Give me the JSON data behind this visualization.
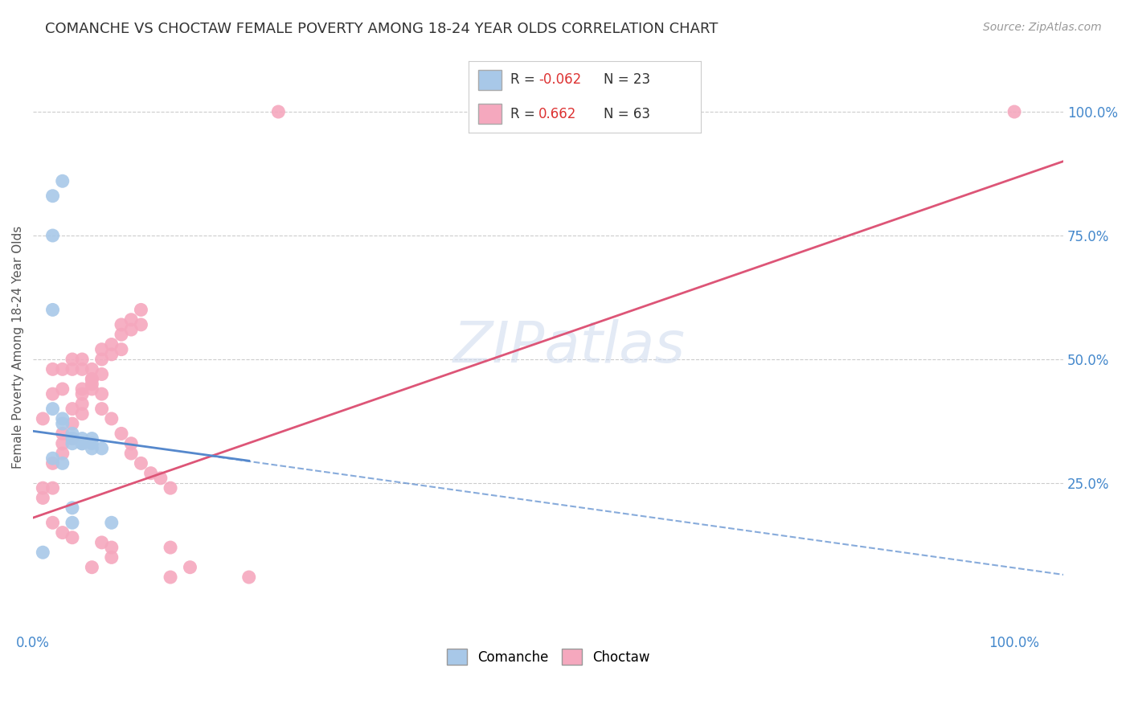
{
  "title": "COMANCHE VS CHOCTAW FEMALE POVERTY AMONG 18-24 YEAR OLDS CORRELATION CHART",
  "source": "Source: ZipAtlas.com",
  "ylabel": "Female Poverty Among 18-24 Year Olds",
  "y_tick_labels_right": [
    "25.0%",
    "50.0%",
    "75.0%",
    "100.0%"
  ],
  "watermark": "ZIPatlas",
  "comanche_color": "#a8c8e8",
  "choctaw_color": "#f5a8be",
  "comanche_line_color": "#5588cc",
  "choctaw_line_color": "#dd5577",
  "comanche_scatter": [
    [
      0.02,
      0.83
    ],
    [
      0.03,
      0.86
    ],
    [
      0.02,
      0.75
    ],
    [
      0.02,
      0.6
    ],
    [
      0.02,
      0.4
    ],
    [
      0.03,
      0.38
    ],
    [
      0.03,
      0.37
    ],
    [
      0.04,
      0.35
    ],
    [
      0.04,
      0.34
    ],
    [
      0.04,
      0.33
    ],
    [
      0.05,
      0.33
    ],
    [
      0.05,
      0.34
    ],
    [
      0.05,
      0.33
    ],
    [
      0.06,
      0.34
    ],
    [
      0.06,
      0.33
    ],
    [
      0.06,
      0.32
    ],
    [
      0.07,
      0.32
    ],
    [
      0.02,
      0.3
    ],
    [
      0.03,
      0.29
    ],
    [
      0.04,
      0.2
    ],
    [
      0.04,
      0.17
    ],
    [
      0.08,
      0.17
    ],
    [
      0.01,
      0.11
    ]
  ],
  "choctaw_scatter": [
    [
      0.01,
      0.24
    ],
    [
      0.02,
      0.24
    ],
    [
      0.01,
      0.22
    ],
    [
      0.02,
      0.29
    ],
    [
      0.03,
      0.31
    ],
    [
      0.03,
      0.33
    ],
    [
      0.03,
      0.35
    ],
    [
      0.04,
      0.34
    ],
    [
      0.04,
      0.37
    ],
    [
      0.04,
      0.4
    ],
    [
      0.05,
      0.39
    ],
    [
      0.05,
      0.41
    ],
    [
      0.05,
      0.44
    ],
    [
      0.05,
      0.43
    ],
    [
      0.06,
      0.45
    ],
    [
      0.06,
      0.46
    ],
    [
      0.06,
      0.48
    ],
    [
      0.07,
      0.47
    ],
    [
      0.07,
      0.5
    ],
    [
      0.07,
      0.52
    ],
    [
      0.08,
      0.51
    ],
    [
      0.08,
      0.53
    ],
    [
      0.09,
      0.52
    ],
    [
      0.09,
      0.55
    ],
    [
      0.09,
      0.57
    ],
    [
      0.1,
      0.56
    ],
    [
      0.1,
      0.58
    ],
    [
      0.11,
      0.57
    ],
    [
      0.11,
      0.6
    ],
    [
      0.01,
      0.38
    ],
    [
      0.02,
      0.43
    ],
    [
      0.02,
      0.48
    ],
    [
      0.03,
      0.44
    ],
    [
      0.03,
      0.48
    ],
    [
      0.04,
      0.48
    ],
    [
      0.04,
      0.5
    ],
    [
      0.05,
      0.5
    ],
    [
      0.05,
      0.48
    ],
    [
      0.06,
      0.46
    ],
    [
      0.06,
      0.44
    ],
    [
      0.07,
      0.43
    ],
    [
      0.07,
      0.4
    ],
    [
      0.08,
      0.38
    ],
    [
      0.09,
      0.35
    ],
    [
      0.1,
      0.33
    ],
    [
      0.1,
      0.31
    ],
    [
      0.11,
      0.29
    ],
    [
      0.12,
      0.27
    ],
    [
      0.13,
      0.26
    ],
    [
      0.14,
      0.24
    ],
    [
      0.02,
      0.17
    ],
    [
      0.03,
      0.15
    ],
    [
      0.04,
      0.14
    ],
    [
      0.07,
      0.13
    ],
    [
      0.08,
      0.12
    ],
    [
      0.14,
      0.12
    ],
    [
      0.08,
      0.1
    ],
    [
      0.06,
      0.08
    ],
    [
      0.16,
      0.08
    ],
    [
      0.14,
      0.06
    ],
    [
      0.22,
      0.06
    ],
    [
      0.25,
      1.0
    ],
    [
      1.0,
      1.0
    ]
  ],
  "xlim": [
    0.0,
    1.05
  ],
  "ylim": [
    -0.05,
    1.1
  ],
  "y_ticks_right": [
    0.25,
    0.5,
    0.75,
    1.0
  ],
  "comanche_line": {
    "x0": 0.0,
    "y0": 0.355,
    "x1": 0.22,
    "y1": 0.295
  },
  "comanche_line_dashed": {
    "x0": 0.18,
    "y0": 0.305,
    "x1": 1.05,
    "y1": 0.065
  },
  "choctaw_line": {
    "x0": 0.0,
    "y0": 0.18,
    "x1": 1.05,
    "y1": 0.9
  }
}
